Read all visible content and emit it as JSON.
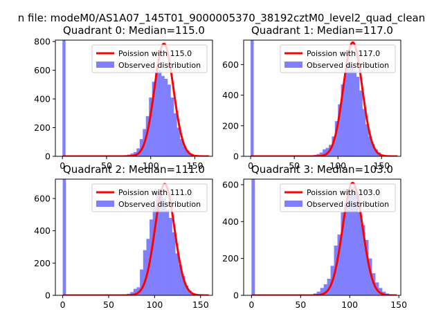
{
  "figure": {
    "suptitle": "n file: modeM0/AS1A07_145T01_9000005370_38192cztM0_level2_quad_clean"
  },
  "chart_data": [
    {
      "type": "bar",
      "title": "Quadrant 0: Median=115.0",
      "xlim": [
        -8,
        170
      ],
      "ylim": [
        0,
        810
      ],
      "xticks": [
        0,
        50,
        100,
        150
      ],
      "yticks": [
        0,
        200,
        400,
        600,
        800
      ],
      "bin_width": 3.5,
      "zero_bin": 810,
      "hist_x": [
        70,
        73.5,
        77,
        80.5,
        84,
        87.5,
        91,
        94.5,
        98,
        101.5,
        105,
        108.5,
        112,
        115.5,
        119,
        122.5,
        126,
        129.5,
        133,
        136.5,
        140,
        143.5,
        147,
        150.5
      ],
      "hist_y": [
        8,
        12,
        20,
        30,
        55,
        120,
        190,
        280,
        410,
        520,
        590,
        600,
        560,
        540,
        500,
        410,
        300,
        200,
        120,
        70,
        40,
        20,
        10,
        5
      ],
      "poisson_mean": 115.0,
      "poisson_peak": 785,
      "legend": [
        "Poission with 115.0",
        "Observed distribution"
      ],
      "legend_placement": "upper right",
      "colors": {
        "line": "#ff0000",
        "bar": "#8080ff"
      }
    },
    {
      "type": "bar",
      "title": "Quadrant 1: Median=117.0",
      "xlim": [
        -8,
        172
      ],
      "ylim": [
        0,
        760
      ],
      "xticks": [
        0,
        50,
        100,
        150
      ],
      "yticks": [
        0,
        200,
        400,
        600
      ],
      "bin_width": 3.5,
      "zero_bin": 760,
      "hist_x": [
        72,
        75.5,
        79,
        82.5,
        86,
        89.5,
        93,
        96.5,
        100,
        103.5,
        107,
        110.5,
        114,
        117.5,
        121,
        124.5,
        128,
        131.5,
        135,
        138.5,
        142,
        145.5,
        149,
        152.5
      ],
      "hist_y": [
        10,
        15,
        25,
        45,
        55,
        75,
        130,
        230,
        340,
        470,
        550,
        610,
        590,
        560,
        520,
        430,
        310,
        210,
        130,
        80,
        45,
        25,
        12,
        6
      ],
      "poisson_mean": 117.0,
      "poisson_peak": 745,
      "legend": [
        "Poission with 117.0",
        "Observed distribution"
      ],
      "legend_placement": "upper right",
      "colors": {
        "line": "#ff0000",
        "bar": "#8080ff"
      }
    },
    {
      "type": "bar",
      "title": "Quadrant 2: Median=111.0",
      "xlim": [
        -8,
        163
      ],
      "ylim": [
        0,
        720
      ],
      "xticks": [
        0,
        50,
        100,
        150
      ],
      "yticks": [
        0,
        200,
        400,
        600
      ],
      "bin_width": 3.5,
      "zero_bin": 720,
      "hist_x": [
        70,
        73.5,
        77,
        80.5,
        84,
        87.5,
        91,
        94.5,
        98,
        101.5,
        105,
        108.5,
        112,
        115.5,
        119,
        122.5,
        126,
        129.5,
        133,
        136.5,
        140,
        143.5
      ],
      "hist_y": [
        10,
        20,
        40,
        50,
        160,
        280,
        350,
        470,
        560,
        640,
        620,
        600,
        530,
        480,
        390,
        260,
        190,
        120,
        60,
        30,
        15,
        8
      ],
      "poisson_mean": 111.0,
      "poisson_peak": 690,
      "legend": [
        "Poission with 111.0",
        "Observed distribution"
      ],
      "legend_placement": "upper right",
      "colors": {
        "line": "#ff0000",
        "bar": "#8080ff"
      }
    },
    {
      "type": "bar",
      "title": "Quadrant 3: Median=103.0",
      "xlim": [
        -8,
        152
      ],
      "ylim": [
        0,
        630
      ],
      "xticks": [
        0,
        50,
        100,
        150
      ],
      "yticks": [
        0,
        200,
        400,
        600
      ],
      "bin_width": 3.5,
      "zero_bin": 630,
      "hist_x": [
        63,
        66.5,
        70,
        73.5,
        77,
        80.5,
        84,
        87.5,
        91,
        94.5,
        98,
        101.5,
        105,
        108.5,
        112,
        115.5,
        119,
        122.5,
        126,
        129.5,
        133,
        136.5
      ],
      "hist_y": [
        10,
        20,
        40,
        60,
        90,
        160,
        270,
        330,
        450,
        500,
        560,
        590,
        560,
        450,
        380,
        300,
        200,
        120,
        70,
        40,
        20,
        10
      ],
      "poisson_mean": 103.0,
      "poisson_peak": 610,
      "legend": [
        "Poission with 103.0",
        "Observed distribution"
      ],
      "legend_placement": "upper right",
      "colors": {
        "line": "#ff0000",
        "bar": "#8080ff"
      }
    }
  ]
}
